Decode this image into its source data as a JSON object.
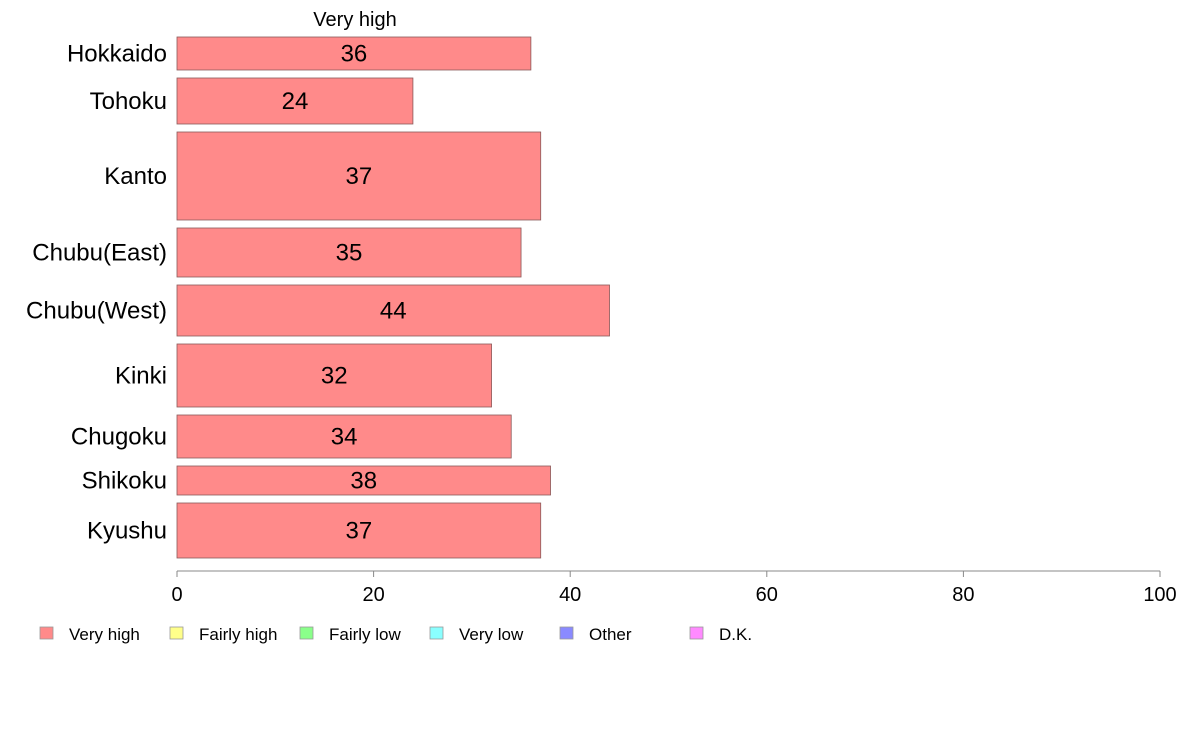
{
  "chart_data": {
    "type": "bar",
    "orientation": "horizontal",
    "series_header": "Very high",
    "categories": [
      "Hokkaido",
      "Tohoku",
      "Kanto",
      "Chubu(East)",
      "Chubu(West)",
      "Kinki",
      "Chugoku",
      "Shikoku",
      "Kyushu"
    ],
    "series": [
      {
        "name": "Very high",
        "values": [
          36,
          24,
          37,
          35,
          44,
          32,
          34,
          38,
          37
        ],
        "color": "#ff8a8a"
      }
    ],
    "xlim": [
      0,
      100
    ],
    "xticks": [
      0,
      20,
      40,
      60,
      80,
      100
    ],
    "grid": false,
    "legend_position": "bottom",
    "legend": [
      {
        "label": "Very high",
        "color": "#ff8a8a"
      },
      {
        "label": "Fairly high",
        "color": "#ffff8a"
      },
      {
        "label": "Fairly low",
        "color": "#8aff8a"
      },
      {
        "label": "Very low",
        "color": "#8affff"
      },
      {
        "label": "Other",
        "color": "#8a8aff"
      },
      {
        "label": "D.K.",
        "color": "#ff8aff"
      }
    ]
  }
}
